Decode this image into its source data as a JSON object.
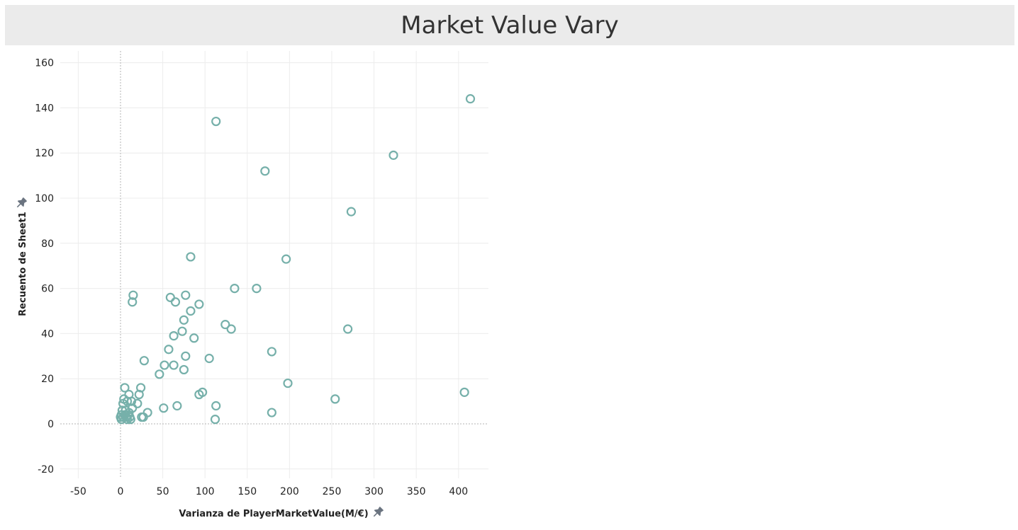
{
  "page": {
    "title": "Market Value Vary"
  },
  "colors": {
    "marker": "#76b0aa",
    "grid": "#ececec",
    "zero_line": "#b3b3b3",
    "pin": "#6b7480"
  },
  "icons": {
    "x_axis_pin": "pin-icon",
    "y_axis_pin": "pin-icon"
  },
  "chart_data": {
    "type": "scatter",
    "title": "Market Value Vary",
    "xlabel": "Varianza de PlayerMarketValue(M/€)",
    "ylabel": "Recuento de Sheet1",
    "xlim": [
      -60,
      435
    ],
    "ylim": [
      -24,
      164
    ],
    "xticks": [
      -50,
      0,
      50,
      100,
      150,
      200,
      250,
      300,
      350,
      400
    ],
    "yticks": [
      -20,
      0,
      20,
      40,
      60,
      80,
      100,
      120,
      140,
      160
    ],
    "grid": true,
    "marker": "hollow-circle",
    "points": [
      [
        414,
        144
      ],
      [
        113,
        134
      ],
      [
        323,
        119
      ],
      [
        171,
        112
      ],
      [
        273,
        94
      ],
      [
        83,
        74
      ],
      [
        196,
        73
      ],
      [
        15,
        57
      ],
      [
        77,
        57
      ],
      [
        59,
        56
      ],
      [
        14,
        54
      ],
      [
        65,
        54
      ],
      [
        93,
        53
      ],
      [
        83,
        50
      ],
      [
        135,
        60
      ],
      [
        161,
        60
      ],
      [
        75,
        46
      ],
      [
        124,
        44
      ],
      [
        131,
        42
      ],
      [
        73,
        41
      ],
      [
        269,
        42
      ],
      [
        63,
        39
      ],
      [
        87,
        38
      ],
      [
        57,
        33
      ],
      [
        179,
        32
      ],
      [
        77,
        30
      ],
      [
        105,
        29
      ],
      [
        28,
        28
      ],
      [
        52,
        26
      ],
      [
        63,
        26
      ],
      [
        75,
        24
      ],
      [
        46,
        22
      ],
      [
        198,
        18
      ],
      [
        5,
        16
      ],
      [
        24,
        16
      ],
      [
        97,
        14
      ],
      [
        93,
        13
      ],
      [
        407,
        14
      ],
      [
        254,
        11
      ],
      [
        10,
        13
      ],
      [
        22,
        13
      ],
      [
        4,
        11
      ],
      [
        8,
        10
      ],
      [
        13,
        10
      ],
      [
        3,
        9
      ],
      [
        20,
        9
      ],
      [
        113,
        8
      ],
      [
        67,
        8
      ],
      [
        14,
        7
      ],
      [
        51,
        7
      ],
      [
        2,
        6
      ],
      [
        6,
        6
      ],
      [
        10,
        5
      ],
      [
        32,
        5
      ],
      [
        179,
        5
      ],
      [
        1,
        4
      ],
      [
        5,
        4
      ],
      [
        9,
        4
      ],
      [
        0,
        3
      ],
      [
        3,
        3
      ],
      [
        7,
        3
      ],
      [
        11,
        3
      ],
      [
        25,
        3
      ],
      [
        27,
        3
      ],
      [
        1,
        2
      ],
      [
        8,
        2
      ],
      [
        12,
        2
      ],
      [
        112,
        2
      ]
    ]
  }
}
